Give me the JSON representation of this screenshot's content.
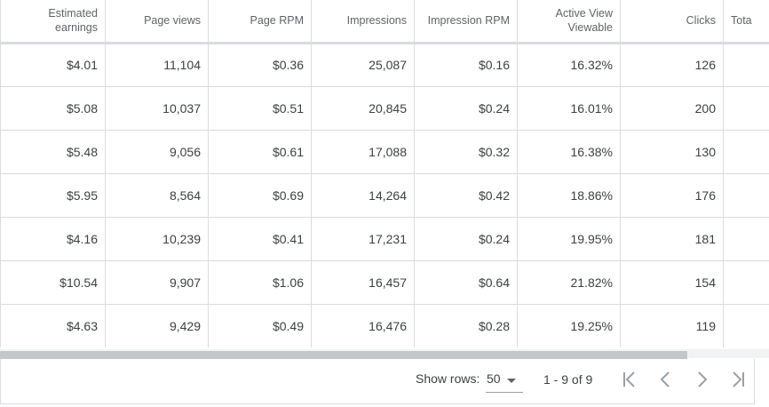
{
  "table": {
    "headers": [
      {
        "line1": "Estimated",
        "line2": "earnings"
      },
      {
        "line1": "Page views",
        "line2": ""
      },
      {
        "line1": "Page RPM",
        "line2": ""
      },
      {
        "line1": "Impressions",
        "line2": ""
      },
      {
        "line1": "Impression RPM",
        "line2": ""
      },
      {
        "line1": "Active View",
        "line2": "Viewable"
      },
      {
        "line1": "Clicks",
        "line2": ""
      },
      {
        "line1": "Tota",
        "line2": ""
      }
    ],
    "rows": [
      [
        "$4.01",
        "11,104",
        "$0.36",
        "25,087",
        "$0.16",
        "16.32%",
        "126",
        ""
      ],
      [
        "$5.08",
        "10,037",
        "$0.51",
        "20,845",
        "$0.24",
        "16.01%",
        "200",
        ""
      ],
      [
        "$5.48",
        "9,056",
        "$0.61",
        "17,088",
        "$0.32",
        "16.38%",
        "130",
        ""
      ],
      [
        "$5.95",
        "8,564",
        "$0.69",
        "14,264",
        "$0.42",
        "18.86%",
        "176",
        ""
      ],
      [
        "$4.16",
        "10,239",
        "$0.41",
        "17,231",
        "$0.24",
        "19.95%",
        "181",
        ""
      ],
      [
        "$10.54",
        "9,907",
        "$1.06",
        "16,457",
        "$0.64",
        "21.82%",
        "154",
        ""
      ],
      [
        "$4.63",
        "9,429",
        "$0.49",
        "16,476",
        "$0.28",
        "19.25%",
        "119",
        ""
      ]
    ]
  },
  "pagination": {
    "show_rows_label": "Show rows:",
    "rows_value": "50",
    "range_label": "1 - 9 of 9",
    "icons": [
      "first-page-icon",
      "previous-page-icon",
      "next-page-icon",
      "last-page-icon"
    ]
  },
  "colors": {
    "border": "#dadce0",
    "text": "#3c4043",
    "header_text": "#5f6368",
    "icon": "#9aa0a6",
    "scroll_thumb": "#c4c7ca"
  }
}
